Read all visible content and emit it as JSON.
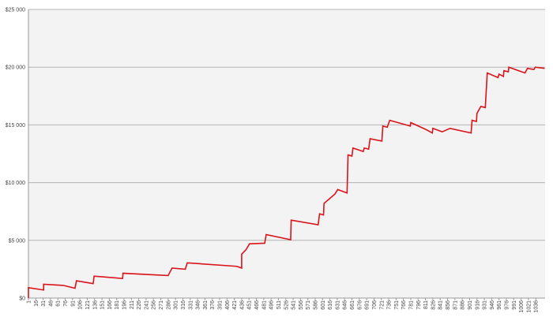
{
  "chart_data": {
    "type": "line",
    "x": [
      1,
      1,
      32,
      32,
      72,
      96,
      99,
      133,
      135,
      193,
      194,
      286,
      294,
      321,
      325,
      426,
      436,
      436,
      445,
      452,
      483,
      486,
      536,
      537,
      592,
      595,
      603,
      604,
      626,
      632,
      651,
      653,
      661,
      663,
      684,
      686,
      695,
      698,
      722,
      724,
      733,
      738,
      780,
      781,
      812,
      825,
      826,
      845,
      861,
      904,
      906,
      915,
      916,
      924,
      933,
      937,
      959,
      961,
      970,
      971,
      980,
      981,
      1014,
      1019,
      1032,
      1035,
      1054
    ],
    "series": [
      {
        "color": "#d9141b",
        "values": [
          0,
          900,
          700,
          1200,
          1100,
          850,
          1500,
          1250,
          1900,
          1700,
          2150,
          1950,
          2600,
          2500,
          3050,
          2750,
          2600,
          3800,
          4200,
          4700,
          4750,
          5500,
          5050,
          6750,
          6350,
          7300,
          7200,
          8200,
          9000,
          9400,
          9100,
          12400,
          12300,
          13000,
          12700,
          13000,
          12900,
          13800,
          13600,
          14900,
          14800,
          15400,
          14900,
          15200,
          14600,
          14300,
          14700,
          14400,
          14700,
          14300,
          15400,
          15300,
          16000,
          16600,
          16500,
          19500,
          19100,
          19400,
          19200,
          19700,
          19600,
          20000,
          19500,
          19900,
          19800,
          20000,
          19900
        ]
      }
    ],
    "xlim": [
      1,
      1055
    ],
    "xticks": [
      1,
      16,
      31,
      46,
      61,
      76,
      91,
      106,
      121,
      136,
      151,
      166,
      181,
      196,
      211,
      226,
      241,
      256,
      271,
      286,
      301,
      316,
      331,
      346,
      361,
      376,
      391,
      406,
      421,
      436,
      451,
      466,
      481,
      496,
      511,
      526,
      541,
      556,
      571,
      586,
      601,
      616,
      631,
      646,
      661,
      676,
      691,
      706,
      721,
      736,
      751,
      766,
      781,
      796,
      811,
      826,
      841,
      856,
      871,
      886,
      901,
      916,
      931,
      946,
      961,
      976,
      991,
      1006,
      1021,
      1036
    ],
    "ylim": [
      0,
      25000
    ],
    "yticks": [
      {
        "value": 0,
        "label": "$0"
      },
      {
        "value": 5000,
        "label": "$5 000"
      },
      {
        "value": 10000,
        "label": "$10 000"
      },
      {
        "value": 15000,
        "label": "$15 000"
      },
      {
        "value": 20000,
        "label": "$20 000"
      },
      {
        "value": 25000,
        "label": "$25 000"
      }
    ],
    "grid": true
  }
}
